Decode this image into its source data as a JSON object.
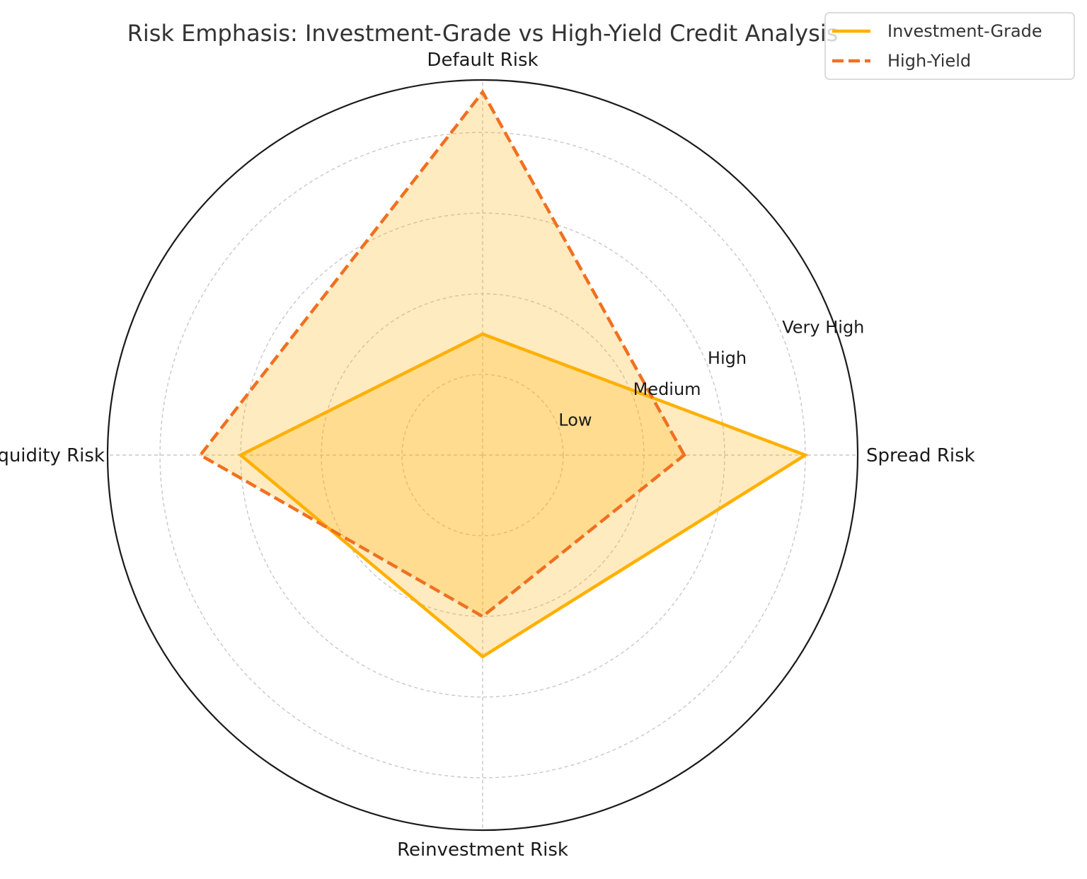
{
  "chart_data": {
    "type": "radar",
    "title": "Risk Emphasis: Investment-Grade vs High-Yield Credit Analysis",
    "categories": [
      "Spread Risk",
      "Default Risk",
      "Liquidity Risk",
      "Reinvestment Risk"
    ],
    "radial_tick_labels": [
      "Low",
      "Medium",
      "High",
      "Very High"
    ],
    "radial_tick_values": [
      1,
      2,
      3,
      4
    ],
    "r_max": 4.65,
    "series": [
      {
        "name": "Investment-Grade",
        "values": [
          4.0,
          1.5,
          3.0,
          2.5
        ],
        "color": "#FFB000",
        "line_style": "solid"
      },
      {
        "name": "High-Yield",
        "values": [
          2.5,
          4.5,
          3.5,
          2.0
        ],
        "color": "#F07020",
        "line_style": "dashed"
      }
    ],
    "fill_color": "#FFB000",
    "grid": true,
    "legend_position": "top-right"
  }
}
